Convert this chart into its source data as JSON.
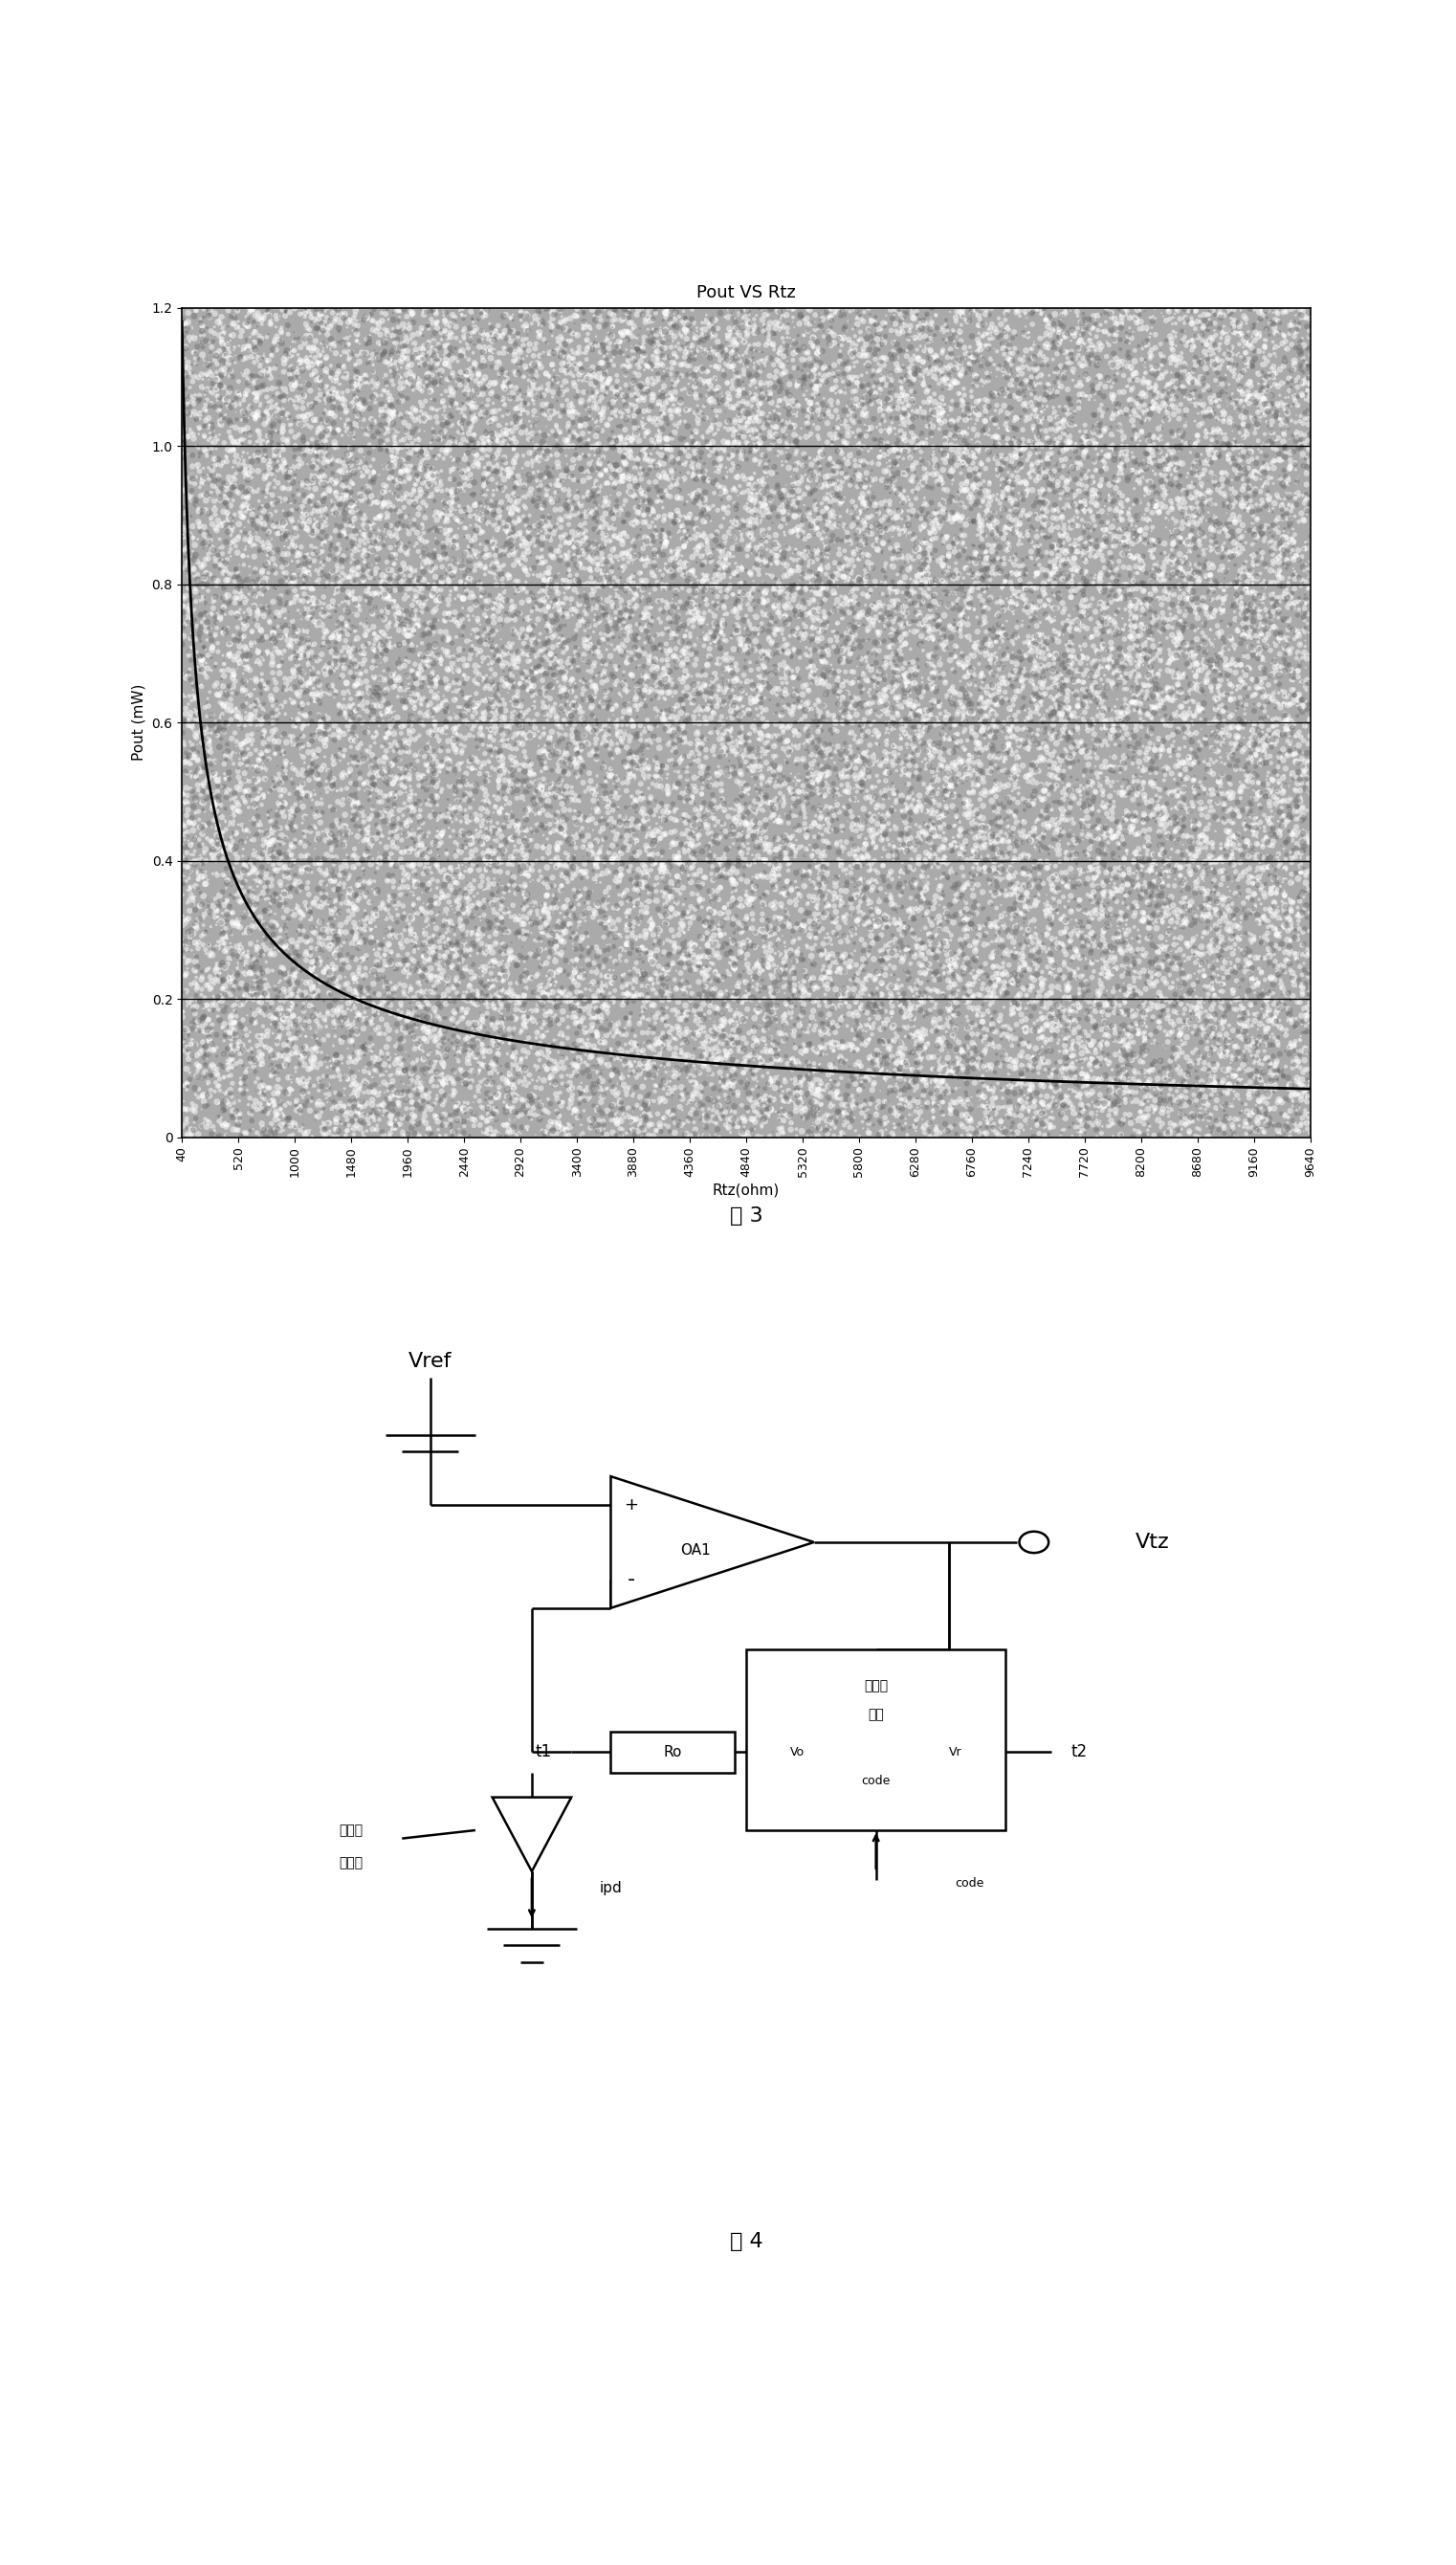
{
  "fig3_title": "Pout VS Rtz",
  "fig3_xlabel": "Rtz(ohm)",
  "fig3_ylabel": "Pout (mW)",
  "fig3_caption": "图 3",
  "fig3_xticks": [
    40,
    520,
    1000,
    1480,
    1960,
    2440,
    2920,
    3400,
    3880,
    4360,
    4840,
    5320,
    5800,
    6280,
    6760,
    7240,
    7720,
    8200,
    8680,
    9160,
    9640
  ],
  "fig3_yticks": [
    0,
    0.2,
    0.4,
    0.6,
    0.8,
    1.0,
    1.2
  ],
  "fig3_ylim": [
    0,
    1.2
  ],
  "fig3_xlim": [
    40,
    9640
  ],
  "fig3_curve_color": "#000000",
  "fig3_bg_color": "#aaaaaa",
  "fig4_caption": "图 4",
  "white_color": "#ffffff",
  "black_color": "#000000",
  "vref_label": "Vref",
  "vtz_label": "Vtz",
  "oa1_label": "OA1",
  "plus_label": "+",
  "minus_label": "-",
  "dac_label1": "数模转",
  "dac_label2": "换器",
  "vo_label": "Vo",
  "vr_label": "Vr",
  "code_label": "code",
  "ro_label": "Ro",
  "t1_label": "t1",
  "t2_label": "t2",
  "ipd_label": "ipd",
  "photodiode_label1": "光检测",
  "photodiode_label2": "二极管"
}
